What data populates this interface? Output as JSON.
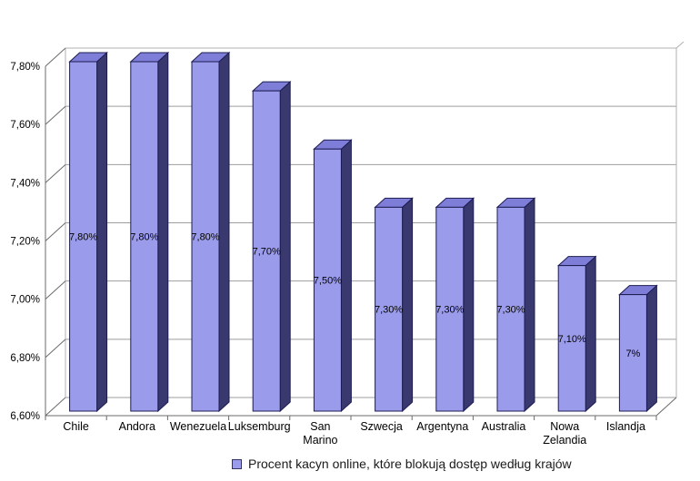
{
  "chart_data": {
    "type": "bar",
    "style": "3d-column",
    "title": "",
    "categories": [
      "Chile",
      "Andora",
      "Wenezuela",
      "Luksemburg",
      "San Marino",
      "Szwecja",
      "Argentyna",
      "Australia",
      "Nowa Zelandia",
      "Islandja"
    ],
    "values": [
      7.8,
      7.8,
      7.8,
      7.7,
      7.5,
      7.3,
      7.3,
      7.3,
      7.1,
      7.0
    ],
    "bar_labels": [
      "7,80%",
      "7,80%",
      "7,80%",
      "7,70%",
      "7,50%",
      "7,30%",
      "7,30%",
      "7,30%",
      "7,10%",
      "7%"
    ],
    "y_tick_labels": [
      "7,80%",
      "7,60%",
      "7,40%",
      "7,20%",
      "7,00%",
      "6,80%",
      "6,60%"
    ],
    "ylim": [
      6.6,
      7.8
    ],
    "grid": true,
    "legend": {
      "position": "bottom",
      "marker": "square-icon",
      "label": "Procent kacyn online, które blokują dostęp według krajów"
    },
    "colors": {
      "bar_front": "#9b9bec",
      "bar_top": "#7e7ed8",
      "bar_side": "#39396f",
      "bar_outline": "#1c1c52",
      "gridline": "#9e9e9e",
      "wall_edge": "#b0b0b0",
      "axis": "#6b6b6b",
      "label_text": "#000000",
      "legend_text": "#1a1a1a",
      "background": "#ffffff"
    }
  }
}
